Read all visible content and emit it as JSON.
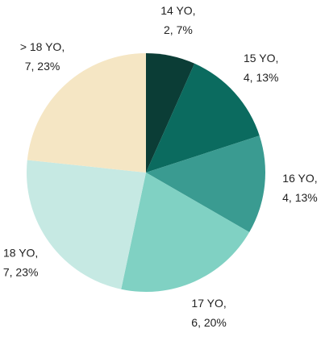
{
  "chart_data": {
    "type": "pie",
    "categories": [
      "14 YO,",
      "15 YO,",
      "16 YO,",
      "17 YO,",
      "18 YO,",
      "> 18 YO,"
    ],
    "values": [
      2,
      4,
      4,
      6,
      7,
      7
    ],
    "value_labels": [
      "2, 7%",
      "4, 13%",
      "4, 13%",
      "6, 20%",
      "7, 23%",
      "7, 23%"
    ],
    "colors": [
      "#0b3d36",
      "#0b6b5f",
      "#3a9b91",
      "#80d1c3",
      "#c6e9e3",
      "#f5e6c4"
    ]
  }
}
